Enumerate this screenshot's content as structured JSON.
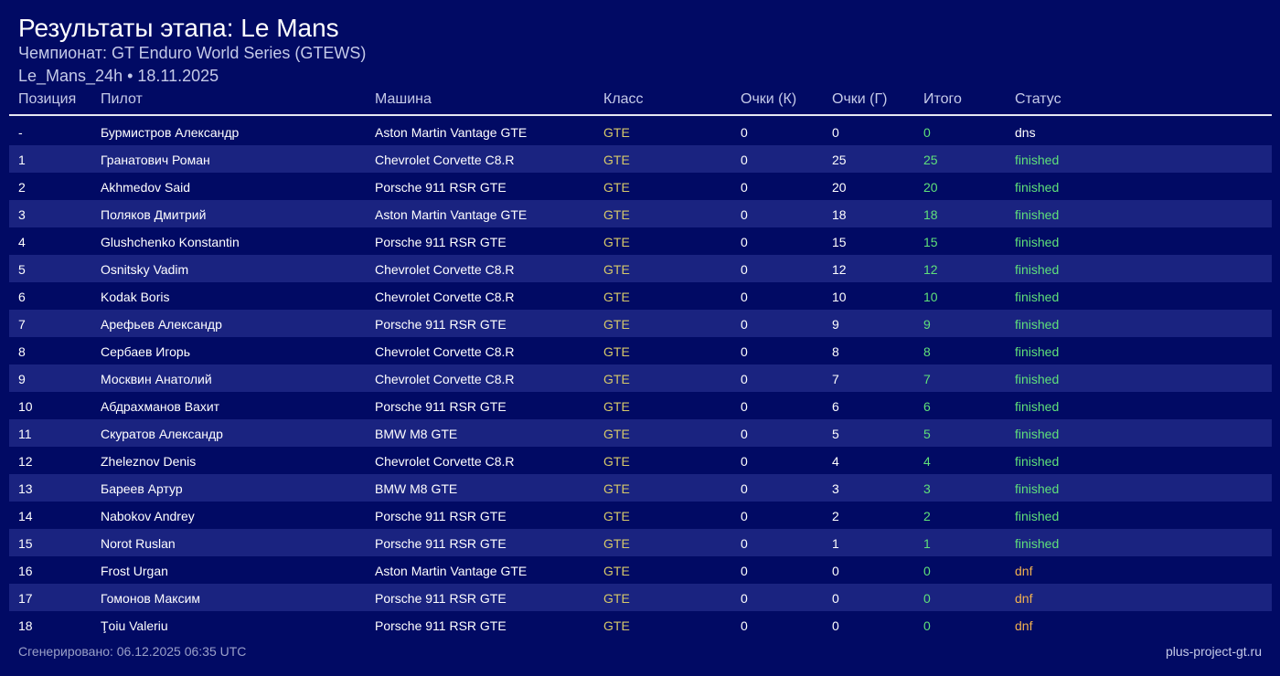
{
  "header": {
    "title": "Результаты этапа: Le Mans",
    "subtitle": "Чемпионат: GT Enduro World Series (GTEWS)",
    "meta": "Le_Mans_24h • 18.11.2025"
  },
  "table": {
    "columns": [
      "Позиция",
      "Пилот",
      "Машина",
      "Класс",
      "Очки (К)",
      "Очки (Г)",
      "Итого",
      "Статус"
    ],
    "rows": [
      {
        "pos": "-",
        "driver": "Бурмистров Александр",
        "car": "Aston Martin Vantage GTE",
        "class": "GTE",
        "k": "0",
        "g": "0",
        "total": "0",
        "status": "dns"
      },
      {
        "pos": "1",
        "driver": "Гранатович Роман",
        "car": "Chevrolet Corvette C8.R",
        "class": "GTE",
        "k": "0",
        "g": "25",
        "total": "25",
        "status": "finished"
      },
      {
        "pos": "2",
        "driver": "Akhmedov Said",
        "car": "Porsche 911 RSR GTE",
        "class": "GTE",
        "k": "0",
        "g": "20",
        "total": "20",
        "status": "finished"
      },
      {
        "pos": "3",
        "driver": "Поляков Дмитрий",
        "car": "Aston Martin Vantage GTE",
        "class": "GTE",
        "k": "0",
        "g": "18",
        "total": "18",
        "status": "finished"
      },
      {
        "pos": "4",
        "driver": "Glushchenko Konstantin",
        "car": "Porsche 911 RSR GTE",
        "class": "GTE",
        "k": "0",
        "g": "15",
        "total": "15",
        "status": "finished"
      },
      {
        "pos": "5",
        "driver": "Osnitsky Vadim",
        "car": "Chevrolet Corvette C8.R",
        "class": "GTE",
        "k": "0",
        "g": "12",
        "total": "12",
        "status": "finished"
      },
      {
        "pos": "6",
        "driver": "Kodak Boris",
        "car": "Chevrolet Corvette C8.R",
        "class": "GTE",
        "k": "0",
        "g": "10",
        "total": "10",
        "status": "finished"
      },
      {
        "pos": "7",
        "driver": "Арефьев Александр",
        "car": "Porsche 911 RSR GTE",
        "class": "GTE",
        "k": "0",
        "g": "9",
        "total": "9",
        "status": "finished"
      },
      {
        "pos": "8",
        "driver": "Сербаев Игорь",
        "car": "Chevrolet Corvette C8.R",
        "class": "GTE",
        "k": "0",
        "g": "8",
        "total": "8",
        "status": "finished"
      },
      {
        "pos": "9",
        "driver": "Москвин Анатолий",
        "car": "Chevrolet Corvette C8.R",
        "class": "GTE",
        "k": "0",
        "g": "7",
        "total": "7",
        "status": "finished"
      },
      {
        "pos": "10",
        "driver": "Абдрахманов Вахит",
        "car": "Porsche 911 RSR GTE",
        "class": "GTE",
        "k": "0",
        "g": "6",
        "total": "6",
        "status": "finished"
      },
      {
        "pos": "11",
        "driver": "Скуратов Александр",
        "car": "BMW M8 GTE",
        "class": "GTE",
        "k": "0",
        "g": "5",
        "total": "5",
        "status": "finished"
      },
      {
        "pos": "12",
        "driver": "Zheleznov Denis",
        "car": "Chevrolet Corvette C8.R",
        "class": "GTE",
        "k": "0",
        "g": "4",
        "total": "4",
        "status": "finished"
      },
      {
        "pos": "13",
        "driver": "Бареев Артур",
        "car": "BMW M8 GTE",
        "class": "GTE",
        "k": "0",
        "g": "3",
        "total": "3",
        "status": "finished"
      },
      {
        "pos": "14",
        "driver": "Nabokov Andrey",
        "car": "Porsche 911 RSR GTE",
        "class": "GTE",
        "k": "0",
        "g": "2",
        "total": "2",
        "status": "finished"
      },
      {
        "pos": "15",
        "driver": "Norot Ruslan",
        "car": "Porsche 911 RSR GTE",
        "class": "GTE",
        "k": "0",
        "g": "1",
        "total": "1",
        "status": "finished"
      },
      {
        "pos": "16",
        "driver": "Frost Urgan",
        "car": "Aston Martin Vantage GTE",
        "class": "GTE",
        "k": "0",
        "g": "0",
        "total": "0",
        "status": "dnf"
      },
      {
        "pos": "17",
        "driver": "Гомонов Максим",
        "car": "Porsche 911 RSR GTE",
        "class": "GTE",
        "k": "0",
        "g": "0",
        "total": "0",
        "status": "dnf"
      },
      {
        "pos": "18",
        "driver": "Ţoiu Valeriu",
        "car": "Porsche 911 RSR GTE",
        "class": "GTE",
        "k": "0",
        "g": "0",
        "total": "0",
        "status": "dnf"
      }
    ]
  },
  "footer": {
    "generated": "Сгенерировано: 06.12.2025 06:35 UTC",
    "site": "plus-project-gt.ru"
  },
  "colors": {
    "background": "#010a64",
    "row_alt": "#1a2380",
    "class_text": "#d6c86a",
    "total_text": "#5fe07a",
    "status_finished": "#5fe07a",
    "status_dnf": "#f0b050",
    "status_dns": "#ffffff"
  }
}
